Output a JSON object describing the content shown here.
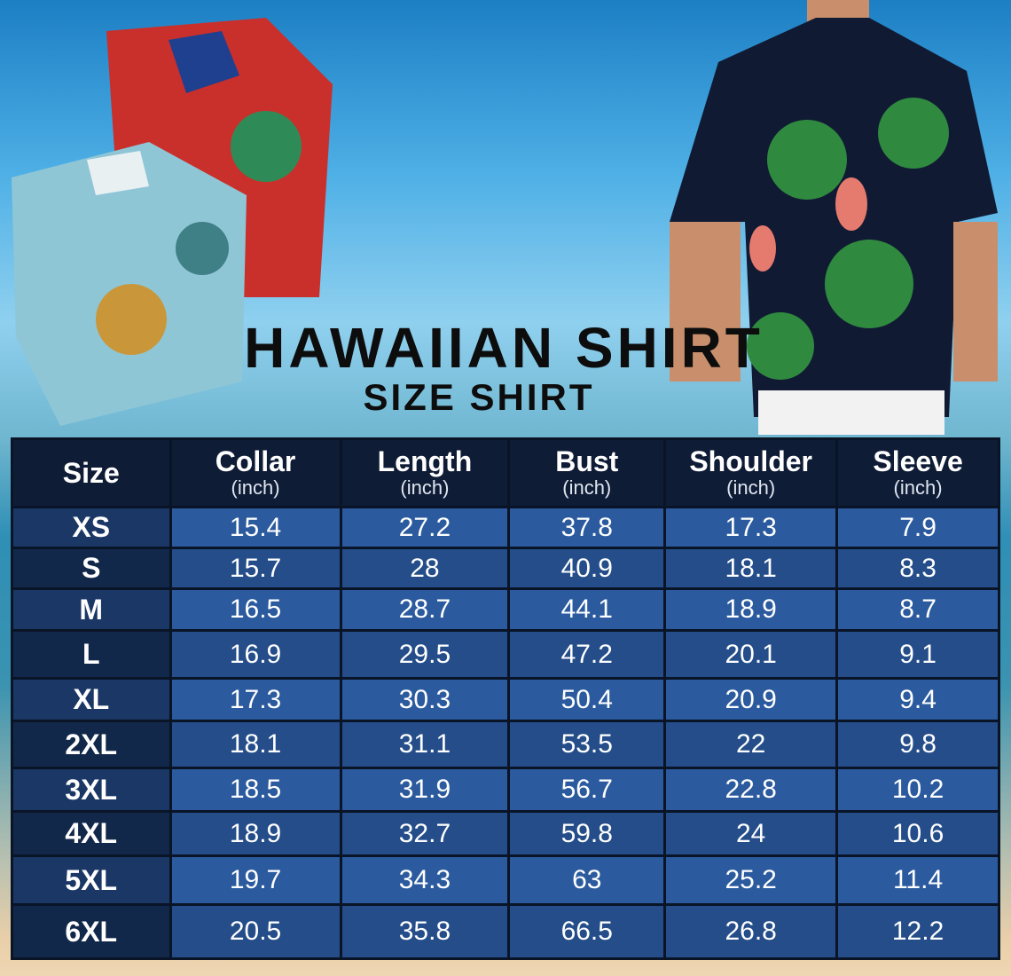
{
  "title": "HAWAIIAN SHIRT",
  "subtitle": "SIZE SHIRT",
  "table": {
    "headers": [
      {
        "label": "Size",
        "unit": ""
      },
      {
        "label": "Collar",
        "unit": "(inch)"
      },
      {
        "label": "Length",
        "unit": "(inch)"
      },
      {
        "label": "Bust",
        "unit": "(inch)"
      },
      {
        "label": "Shoulder",
        "unit": "(inch)"
      },
      {
        "label": "Sleeve",
        "unit": "(inch)"
      }
    ],
    "rows": [
      [
        "XS",
        "15.4",
        "27.2",
        "37.8",
        "17.3",
        "7.9"
      ],
      [
        "S",
        "15.7",
        "28",
        "40.9",
        "18.1",
        "8.3"
      ],
      [
        "M",
        "16.5",
        "28.7",
        "44.1",
        "18.9",
        "8.7"
      ],
      [
        "L",
        "16.9",
        "29.5",
        "47.2",
        "20.1",
        "9.1"
      ],
      [
        "XL",
        "17.3",
        "30.3",
        "50.4",
        "20.9",
        "9.4"
      ],
      [
        "2XL",
        "18.1",
        "31.1",
        "53.5",
        "22",
        "9.8"
      ],
      [
        "3XL",
        "18.5",
        "31.9",
        "56.7",
        "22.8",
        "10.2"
      ],
      [
        "4XL",
        "18.9",
        "32.7",
        "59.8",
        "24",
        "10.6"
      ],
      [
        "5XL",
        "19.7",
        "34.3",
        "63",
        "25.2",
        "11.4"
      ],
      [
        "6XL",
        "20.5",
        "35.8",
        "66.5",
        "26.8",
        "12.2"
      ]
    ]
  },
  "colors": {
    "header": "#0f1c36",
    "row_light": "#2b5b9e",
    "row_dark": "#244d89"
  }
}
